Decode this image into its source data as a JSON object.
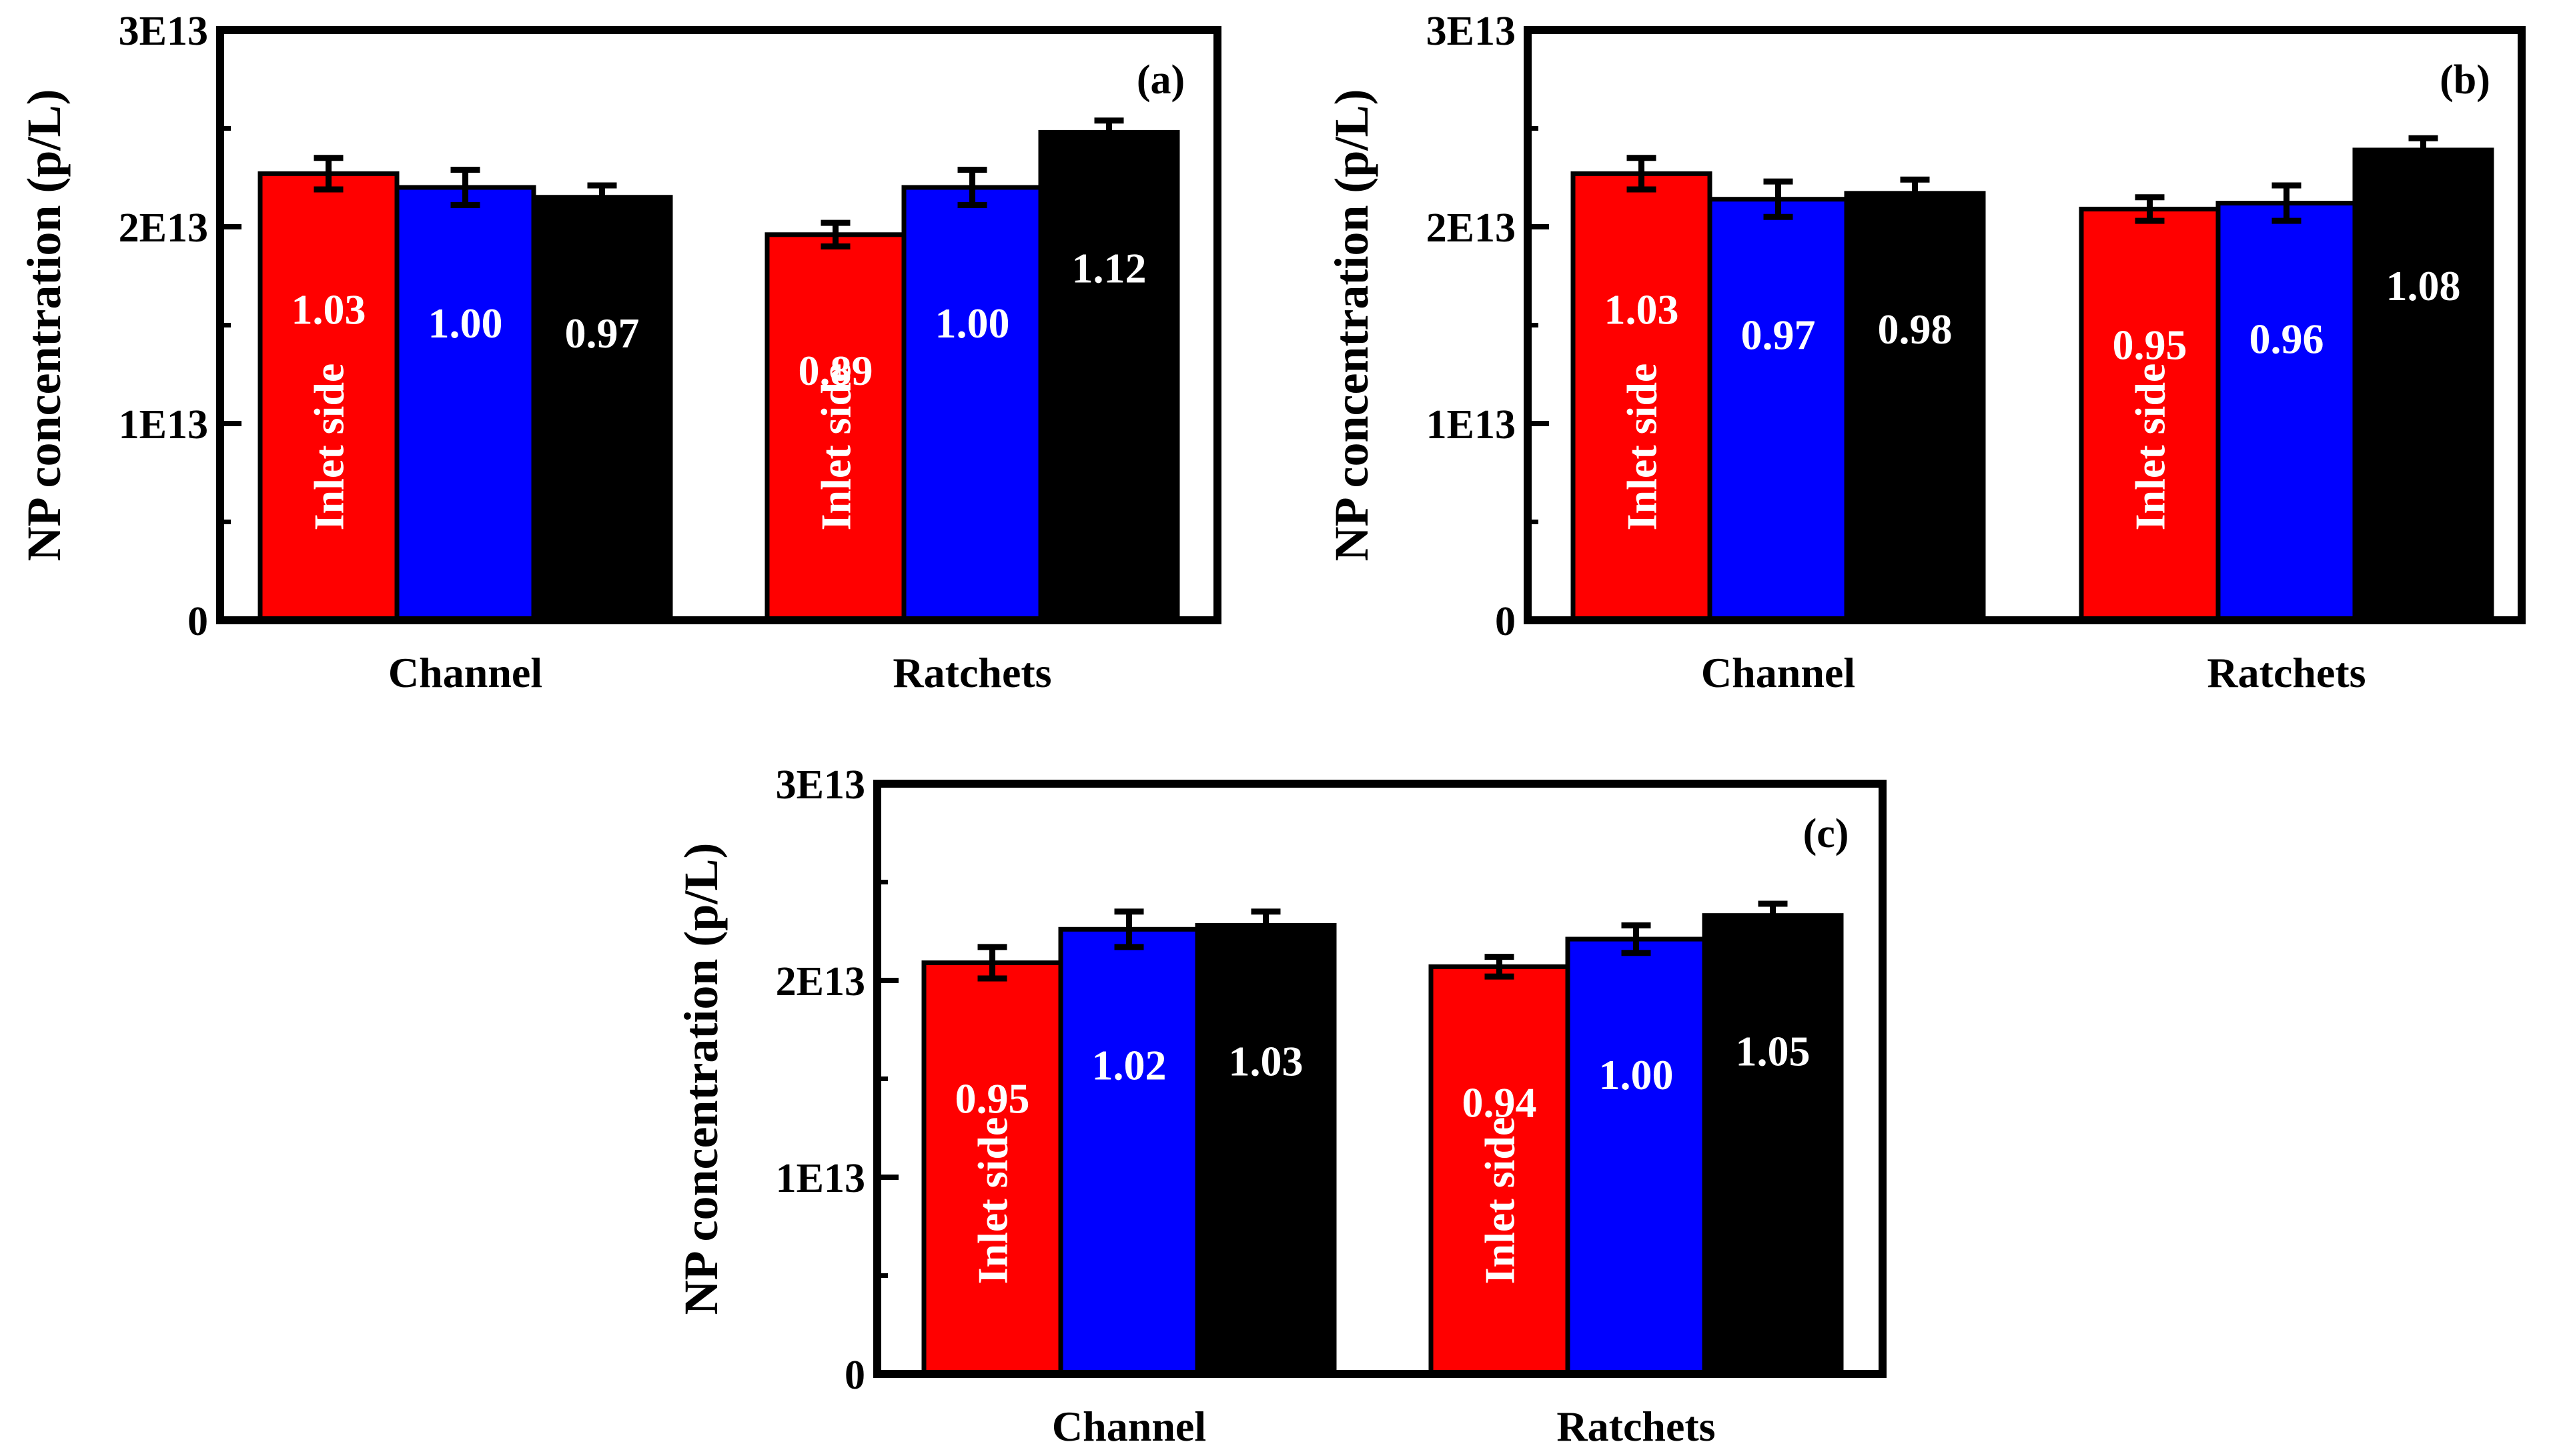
{
  "chart_data": [
    {
      "type": "bar",
      "panel_label": "(a)",
      "ylabel": "NP concentration (p/L)",
      "ylim": [
        0,
        30000000000000
      ],
      "yticks": [
        0,
        10000000000000,
        20000000000000,
        30000000000000
      ],
      "ytick_labels": [
        "0",
        "1E13",
        "2E13",
        "3E13"
      ],
      "categories": [
        "Channel",
        "Ratchets"
      ],
      "first_bar_label": "Inlet side",
      "colors": [
        "#ff0000",
        "#0000ff",
        "#000000"
      ],
      "series": [
        {
          "values": [
            22700000000000,
            19600000000000
          ],
          "errors": [
            800000000000,
            600000000000
          ],
          "ratio_labels": [
            "1.03",
            "0.89"
          ]
        },
        {
          "values": [
            22000000000000,
            22000000000000
          ],
          "errors": [
            900000000000,
            900000000000
          ],
          "ratio_labels": [
            "1.00",
            "1.00"
          ]
        },
        {
          "values": [
            21500000000000,
            24800000000000
          ],
          "errors": [
            600000000000,
            600000000000
          ],
          "ratio_labels": [
            "0.97",
            "1.12"
          ]
        }
      ]
    },
    {
      "type": "bar",
      "panel_label": "(b)",
      "ylabel": "NP concentration (p/L)",
      "ylim": [
        0,
        30000000000000
      ],
      "yticks": [
        0,
        10000000000000,
        20000000000000,
        30000000000000
      ],
      "ytick_labels": [
        "0",
        "1E13",
        "2E13",
        "3E13"
      ],
      "categories": [
        "Channel",
        "Ratchets"
      ],
      "first_bar_label": "Inlet side",
      "colors": [
        "#ff0000",
        "#0000ff",
        "#000000"
      ],
      "series": [
        {
          "values": [
            22700000000000,
            20900000000000
          ],
          "errors": [
            800000000000,
            600000000000
          ],
          "ratio_labels": [
            "1.03",
            "0.95"
          ]
        },
        {
          "values": [
            21400000000000,
            21200000000000
          ],
          "errors": [
            900000000000,
            900000000000
          ],
          "ratio_labels": [
            "0.97",
            "0.96"
          ]
        },
        {
          "values": [
            21700000000000,
            23900000000000
          ],
          "errors": [
            700000000000,
            600000000000
          ],
          "ratio_labels": [
            "0.98",
            "1.08"
          ]
        }
      ]
    },
    {
      "type": "bar",
      "panel_label": "(c)",
      "ylabel": "NP concentration (p/L)",
      "ylim": [
        0,
        30000000000000
      ],
      "yticks": [
        0,
        10000000000000,
        20000000000000,
        30000000000000
      ],
      "ytick_labels": [
        "0",
        "1E13",
        "2E13",
        "3E13"
      ],
      "categories": [
        "Channel",
        "Ratchets"
      ],
      "first_bar_label": "Inlet side",
      "colors": [
        "#ff0000",
        "#0000ff",
        "#000000"
      ],
      "series": [
        {
          "values": [
            20900000000000,
            20700000000000
          ],
          "errors": [
            800000000000,
            500000000000
          ],
          "ratio_labels": [
            "0.95",
            "0.94"
          ]
        },
        {
          "values": [
            22600000000000,
            22100000000000
          ],
          "errors": [
            900000000000,
            700000000000
          ],
          "ratio_labels": [
            "1.02",
            "1.00"
          ]
        },
        {
          "values": [
            22800000000000,
            23300000000000
          ],
          "errors": [
            700000000000,
            600000000000
          ],
          "ratio_labels": [
            "1.03",
            "1.05"
          ]
        }
      ]
    }
  ]
}
